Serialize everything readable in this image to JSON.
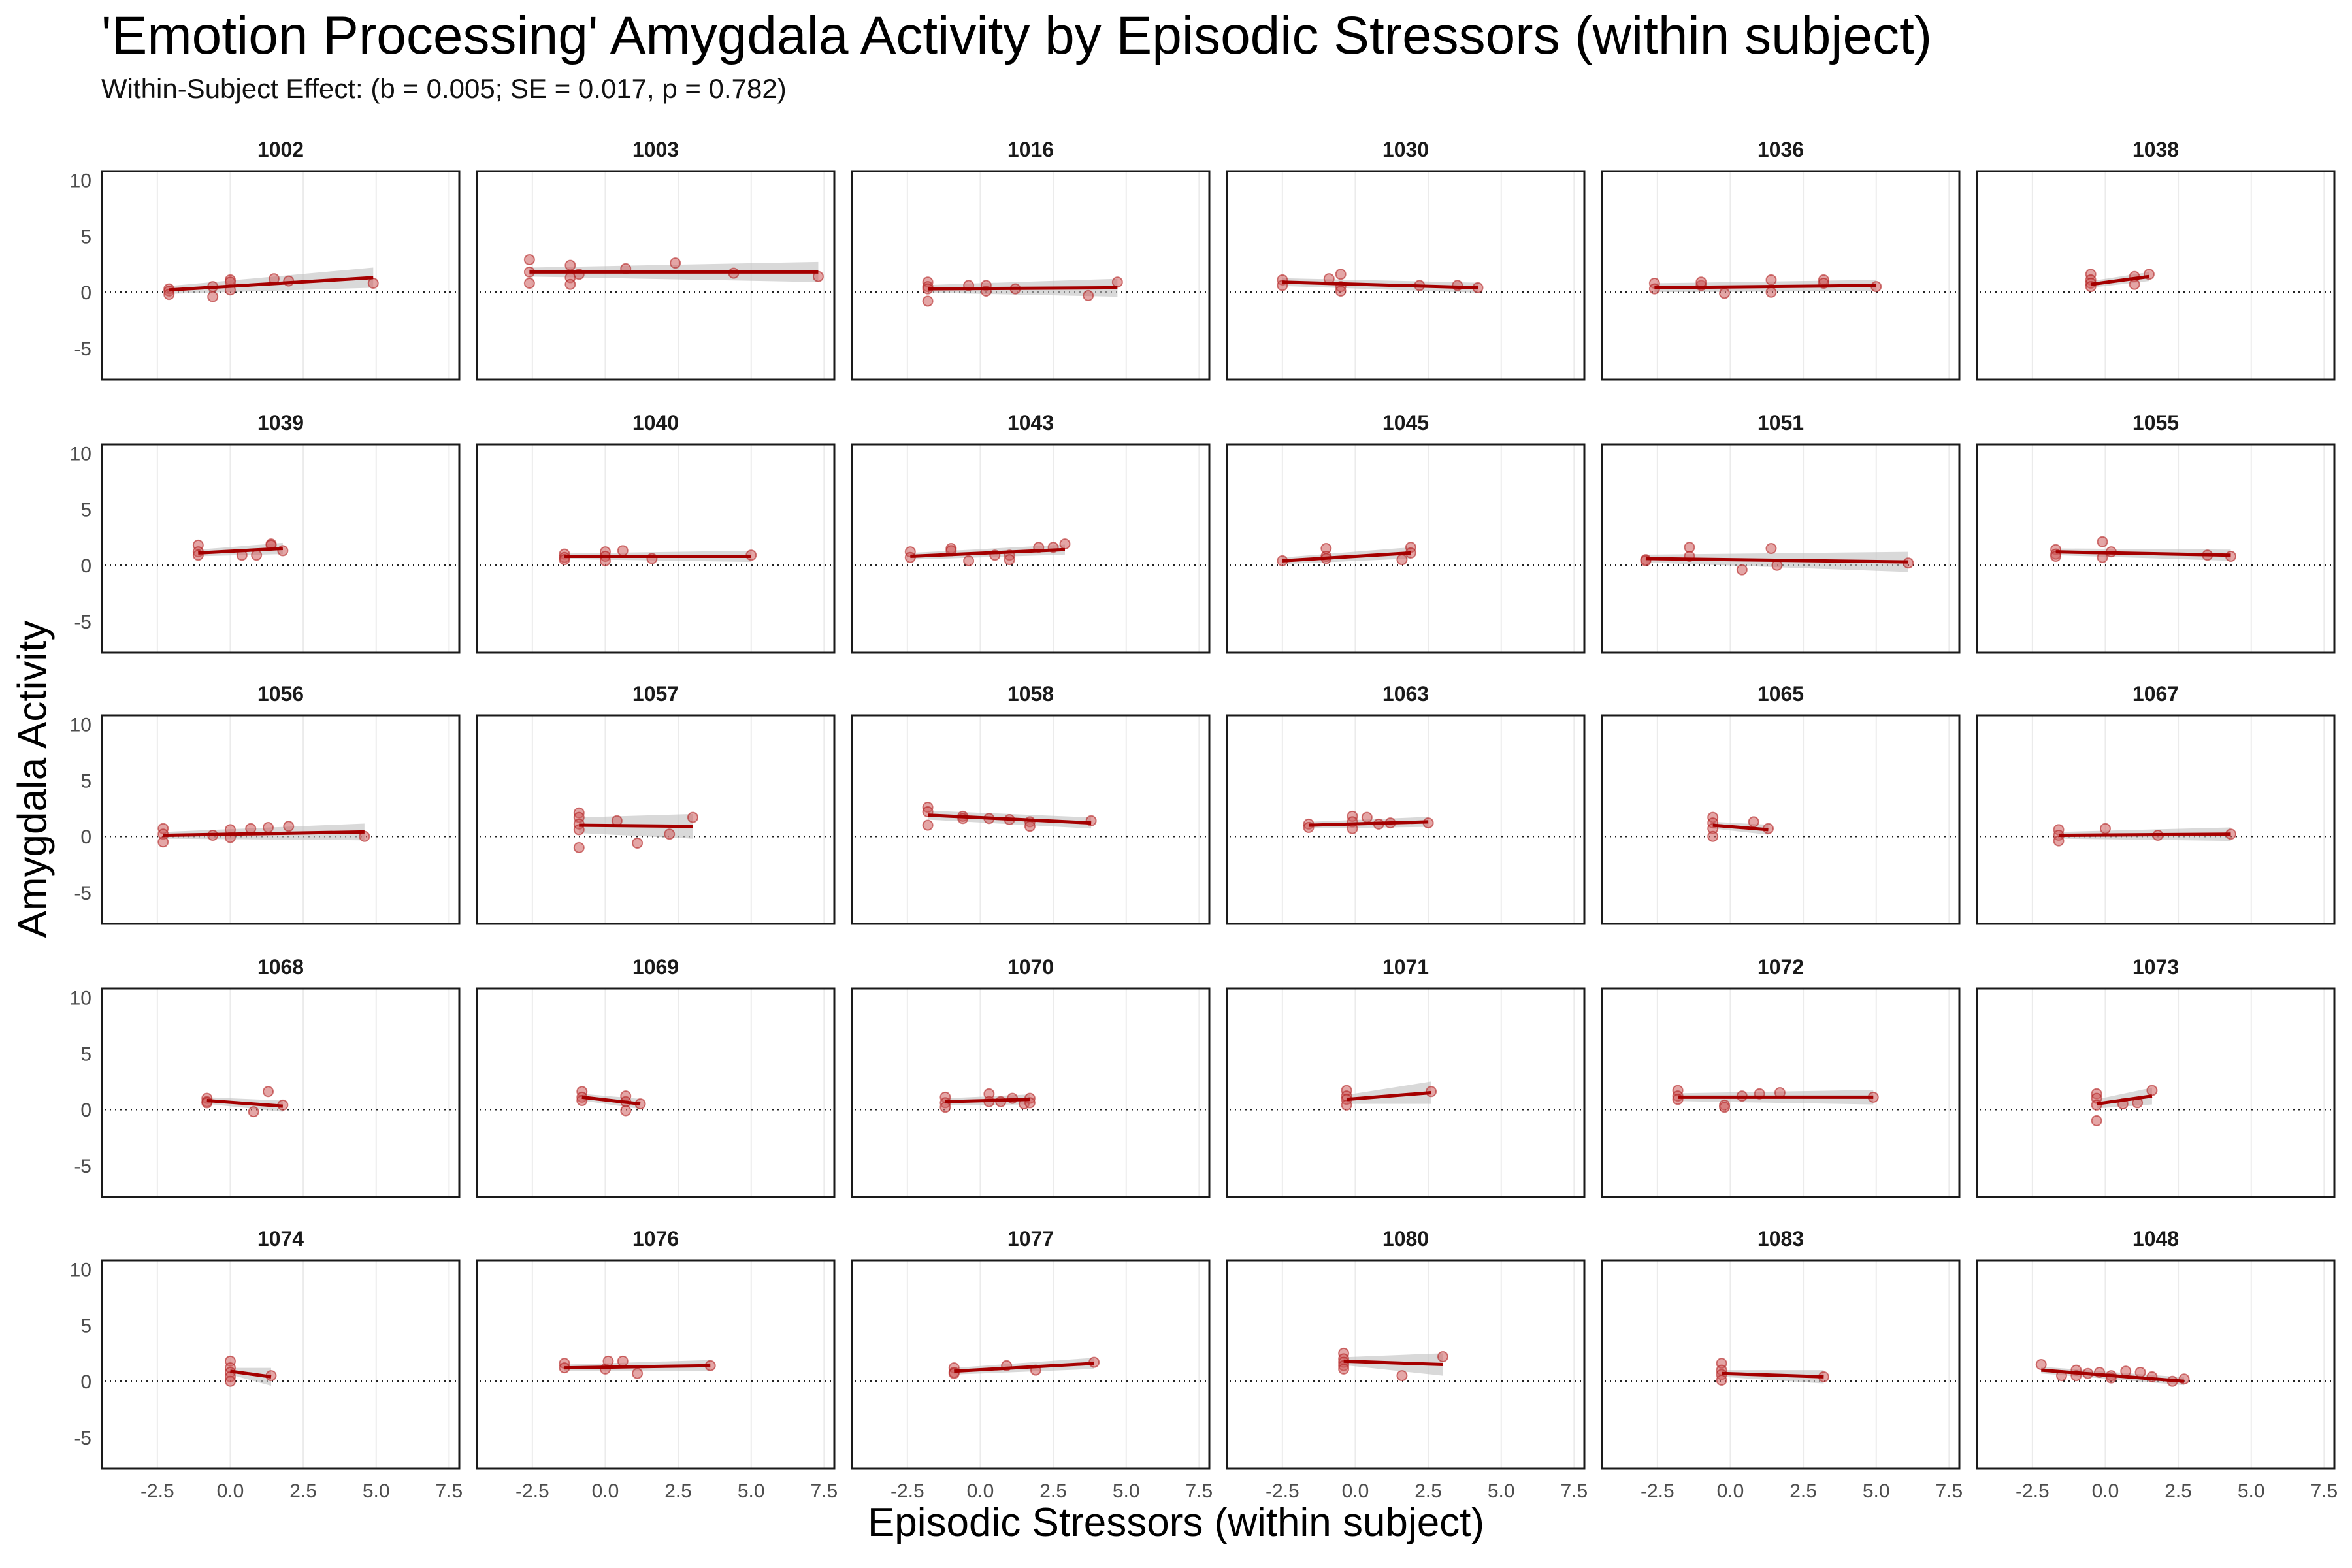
{
  "chart_data": {
    "type": "scatter",
    "title": "'Emotion Processing' Amygdala Activity by Episodic Stressors (within subject)",
    "subtitle": "Within-Subject Effect: (b = 0.005; SE = 0.017, p = 0.782)",
    "xlabel": "Episodic Stressors (within subject)",
    "ylabel": "Amygdala Activity",
    "xlim": [
      -4.4,
      7.85
    ],
    "ylim": [
      -7.8,
      10.8
    ],
    "x_ticks": [
      -2.5,
      0.0,
      2.5,
      5.0,
      7.5
    ],
    "x_tick_labels": [
      "-2.5",
      "0.0",
      "2.5",
      "5.0",
      "7.5"
    ],
    "y_ticks": [
      10,
      5,
      0,
      -5
    ],
    "y_tick_labels": [
      "10",
      "5",
      "0",
      "-5"
    ],
    "reference_line_y": 0,
    "grid": "vertical-major",
    "point_color": "#cd5c5c",
    "line_color": "#a50000",
    "ribbon_color": "#bfbfbf",
    "facets": [
      {
        "id": "1002",
        "x": [
          -2.1,
          -2.1,
          -2.1,
          -0.6,
          -0.6,
          0.0,
          0.0,
          0.0,
          1.5,
          2.0,
          4.9
        ],
        "y": [
          0.3,
          0.1,
          -0.2,
          0.5,
          -0.4,
          1.1,
          0.9,
          0.2,
          1.2,
          1.0,
          0.8
        ],
        "fit": [
          [
            -2.1,
            0.2
          ],
          [
            4.9,
            1.3
          ]
        ],
        "se": [
          0.35,
          0.9
        ]
      },
      {
        "id": "1003",
        "x": [
          -2.6,
          -2.6,
          -2.6,
          -1.2,
          -1.2,
          -1.2,
          -0.9,
          0.7,
          2.4,
          4.4,
          7.3
        ],
        "y": [
          2.9,
          1.8,
          0.8,
          2.4,
          1.3,
          0.7,
          1.6,
          2.1,
          2.6,
          1.7,
          1.4
        ],
        "fit": [
          [
            -2.6,
            1.8
          ],
          [
            7.3,
            1.8
          ]
        ],
        "se": [
          0.4,
          0.9
        ]
      },
      {
        "id": "1016",
        "x": [
          -1.8,
          -1.8,
          -1.8,
          -1.8,
          -0.4,
          0.2,
          0.2,
          1.2,
          3.7,
          4.7
        ],
        "y": [
          0.9,
          0.5,
          0.3,
          -0.8,
          0.6,
          0.6,
          0.1,
          0.3,
          -0.3,
          0.9
        ],
        "fit": [
          [
            -1.8,
            0.3
          ],
          [
            4.7,
            0.4
          ]
        ],
        "se": [
          0.35,
          0.8
        ]
      },
      {
        "id": "1030",
        "x": [
          -2.5,
          -2.5,
          -0.9,
          -0.5,
          -0.5,
          -0.5,
          2.2,
          3.5,
          4.2
        ],
        "y": [
          1.1,
          0.6,
          1.2,
          1.6,
          0.5,
          0.1,
          0.6,
          0.6,
          0.4
        ],
        "fit": [
          [
            -2.5,
            0.9
          ],
          [
            4.2,
            0.4
          ]
        ],
        "se": [
          0.35,
          0.45
        ]
      },
      {
        "id": "1036",
        "x": [
          -2.6,
          -2.6,
          -1.0,
          -1.0,
          -0.2,
          1.4,
          1.4,
          3.2,
          3.2,
          5.0
        ],
        "y": [
          0.8,
          0.3,
          0.6,
          0.9,
          -0.1,
          1.1,
          0.0,
          1.1,
          0.8,
          0.5
        ],
        "fit": [
          [
            -2.6,
            0.4
          ],
          [
            5.0,
            0.6
          ]
        ],
        "se": [
          0.4,
          0.5
        ]
      },
      {
        "id": "1038",
        "x": [
          -0.5,
          -0.5,
          -0.5,
          -0.5,
          1.0,
          1.0,
          1.5
        ],
        "y": [
          1.6,
          1.1,
          0.8,
          0.5,
          1.4,
          0.7,
          1.6
        ],
        "fit": [
          [
            -0.5,
            0.7
          ],
          [
            1.5,
            1.4
          ]
        ],
        "se": [
          0.3,
          0.4
        ]
      },
      {
        "id": "1039",
        "x": [
          -1.1,
          -1.1,
          -1.1,
          0.4,
          0.9,
          1.4,
          1.4,
          1.8
        ],
        "y": [
          1.8,
          1.2,
          0.9,
          0.9,
          0.9,
          1.9,
          1.8,
          1.3
        ],
        "fit": [
          [
            -1.1,
            1.1
          ],
          [
            1.8,
            1.5
          ]
        ],
        "se": [
          0.3,
          0.5
        ]
      },
      {
        "id": "1040",
        "x": [
          -1.4,
          -1.4,
          -1.4,
          0.0,
          0.0,
          0.0,
          0.6,
          1.6,
          5.0
        ],
        "y": [
          1.0,
          0.7,
          0.5,
          1.2,
          0.8,
          0.4,
          1.3,
          0.6,
          0.9
        ],
        "fit": [
          [
            -1.4,
            0.8
          ],
          [
            5.0,
            0.8
          ]
        ],
        "se": [
          0.25,
          0.5
        ]
      },
      {
        "id": "1043",
        "x": [
          -2.4,
          -2.4,
          -1.0,
          -1.0,
          -0.4,
          0.5,
          1.0,
          1.0,
          2.0,
          2.5,
          2.9
        ],
        "y": [
          1.2,
          0.7,
          1.5,
          1.3,
          0.4,
          0.9,
          0.9,
          0.5,
          1.6,
          1.6,
          1.9
        ],
        "fit": [
          [
            -2.4,
            0.8
          ],
          [
            2.9,
            1.4
          ]
        ],
        "se": [
          0.3,
          0.45
        ]
      },
      {
        "id": "1045",
        "x": [
          -2.5,
          -1.0,
          -1.0,
          -1.0,
          1.6,
          1.9,
          1.9
        ],
        "y": [
          0.4,
          1.5,
          0.8,
          0.6,
          0.5,
          1.6,
          1.1
        ],
        "fit": [
          [
            -2.5,
            0.4
          ],
          [
            1.9,
            1.1
          ]
        ],
        "se": [
          0.3,
          0.5
        ]
      },
      {
        "id": "1051",
        "x": [
          -2.9,
          -2.9,
          -1.4,
          -1.4,
          0.4,
          1.4,
          1.6,
          6.1
        ],
        "y": [
          0.5,
          0.4,
          1.6,
          0.8,
          -0.4,
          1.5,
          0.0,
          0.2
        ],
        "fit": [
          [
            -2.9,
            0.6
          ],
          [
            6.1,
            0.3
          ]
        ],
        "se": [
          0.35,
          0.9
        ]
      },
      {
        "id": "1055",
        "x": [
          -1.7,
          -1.7,
          -1.7,
          -0.1,
          -0.1,
          0.2,
          3.5,
          4.3
        ],
        "y": [
          1.4,
          1.0,
          0.8,
          2.1,
          0.7,
          1.2,
          0.9,
          0.8
        ],
        "fit": [
          [
            -1.7,
            1.2
          ],
          [
            4.3,
            0.9
          ]
        ],
        "se": [
          0.3,
          0.5
        ]
      },
      {
        "id": "1056",
        "x": [
          -2.3,
          -2.3,
          -2.3,
          -0.6,
          0.0,
          0.0,
          0.7,
          1.3,
          2.0,
          4.6
        ],
        "y": [
          0.7,
          0.2,
          -0.5,
          0.1,
          0.6,
          -0.1,
          0.7,
          0.8,
          0.9,
          0.0
        ],
        "fit": [
          [
            -2.3,
            0.1
          ],
          [
            4.6,
            0.4
          ]
        ],
        "se": [
          0.3,
          0.75
        ]
      },
      {
        "id": "1057",
        "x": [
          -0.9,
          -0.9,
          -0.9,
          -0.9,
          -0.9,
          0.4,
          1.1,
          2.2,
          3.0
        ],
        "y": [
          2.1,
          1.7,
          1.1,
          0.6,
          -1.0,
          1.4,
          -0.6,
          0.2,
          1.7
        ],
        "fit": [
          [
            -0.9,
            1.0
          ],
          [
            3.0,
            0.9
          ]
        ],
        "se": [
          0.7,
          1.1
        ]
      },
      {
        "id": "1058",
        "x": [
          -1.8,
          -1.8,
          -1.8,
          -0.6,
          -0.6,
          0.3,
          1.0,
          1.7,
          1.7,
          3.8
        ],
        "y": [
          2.6,
          2.2,
          1.0,
          1.8,
          1.6,
          1.6,
          1.5,
          1.3,
          0.9,
          1.4
        ],
        "fit": [
          [
            -1.8,
            1.9
          ],
          [
            3.8,
            1.2
          ]
        ],
        "se": [
          0.4,
          0.5
        ]
      },
      {
        "id": "1063",
        "x": [
          -1.6,
          -1.6,
          -0.1,
          -0.1,
          -0.1,
          0.4,
          0.8,
          1.2,
          2.5
        ],
        "y": [
          1.1,
          0.8,
          1.8,
          1.3,
          0.7,
          1.7,
          1.1,
          1.2,
          1.2
        ],
        "fit": [
          [
            -1.6,
            1.0
          ],
          [
            2.5,
            1.3
          ]
        ],
        "se": [
          0.3,
          0.45
        ]
      },
      {
        "id": "1065",
        "x": [
          -0.6,
          -0.6,
          -0.6,
          -0.6,
          0.8,
          1.3
        ],
        "y": [
          1.7,
          1.2,
          0.7,
          0.0,
          1.3,
          0.7
        ],
        "fit": [
          [
            -0.6,
            1.0
          ],
          [
            1.3,
            0.6
          ]
        ],
        "se": [
          0.3,
          0.45
        ]
      },
      {
        "id": "1067",
        "x": [
          -1.6,
          -1.6,
          -1.6,
          0.0,
          1.8,
          4.3
        ],
        "y": [
          0.6,
          0.1,
          -0.4,
          0.7,
          0.1,
          0.2
        ],
        "fit": [
          [
            -1.6,
            0.1
          ],
          [
            4.3,
            0.2
          ]
        ],
        "se": [
          0.3,
          0.6
        ]
      },
      {
        "id": "1068",
        "x": [
          -0.8,
          -0.8,
          -0.8,
          0.8,
          1.3,
          1.8
        ],
        "y": [
          1.0,
          0.7,
          0.6,
          -0.2,
          1.6,
          0.4
        ],
        "fit": [
          [
            -0.8,
            0.8
          ],
          [
            1.8,
            0.3
          ]
        ],
        "se": [
          0.3,
          0.5
        ]
      },
      {
        "id": "1069",
        "x": [
          -0.8,
          -0.8,
          -0.8,
          0.7,
          0.7,
          0.7,
          1.2
        ],
        "y": [
          1.6,
          1.1,
          0.8,
          1.2,
          0.7,
          -0.1,
          0.5
        ],
        "fit": [
          [
            -0.8,
            1.1
          ],
          [
            1.2,
            0.5
          ]
        ],
        "se": [
          0.3,
          0.45
        ]
      },
      {
        "id": "1070",
        "x": [
          -1.2,
          -1.2,
          -1.2,
          0.3,
          0.3,
          0.7,
          1.1,
          1.5,
          1.7,
          1.7
        ],
        "y": [
          1.1,
          0.6,
          0.2,
          1.4,
          0.7,
          0.7,
          1.0,
          0.5,
          1.0,
          0.6
        ],
        "fit": [
          [
            -1.2,
            0.7
          ],
          [
            1.7,
            0.9
          ]
        ],
        "se": [
          0.3,
          0.45
        ]
      },
      {
        "id": "1071",
        "x": [
          -0.3,
          -0.3,
          -0.3,
          -0.3,
          2.6
        ],
        "y": [
          1.7,
          1.2,
          0.9,
          0.4,
          1.6
        ],
        "fit": [
          [
            -0.3,
            0.9
          ],
          [
            2.6,
            1.5
          ]
        ],
        "se": [
          0.4,
          1.0
        ]
      },
      {
        "id": "1072",
        "x": [
          -1.8,
          -1.8,
          -1.8,
          -0.2,
          -0.2,
          0.4,
          1.0,
          1.7,
          4.9
        ],
        "y": [
          1.7,
          1.2,
          0.9,
          0.4,
          0.2,
          1.2,
          1.4,
          1.5,
          1.1
        ],
        "fit": [
          [
            -1.8,
            1.1
          ],
          [
            4.9,
            1.1
          ]
        ],
        "se": [
          0.35,
          0.65
        ]
      },
      {
        "id": "1073",
        "x": [
          -0.3,
          -0.3,
          -0.3,
          -0.3,
          0.6,
          1.1,
          1.6
        ],
        "y": [
          1.4,
          1.0,
          0.4,
          -1.0,
          0.5,
          0.6,
          1.7
        ],
        "fit": [
          [
            -0.3,
            0.5
          ],
          [
            1.6,
            1.2
          ]
        ],
        "se": [
          0.4,
          0.75
        ]
      },
      {
        "id": "1074",
        "x": [
          0.0,
          0.0,
          0.0,
          0.0,
          0.0,
          1.4
        ],
        "y": [
          1.8,
          1.2,
          0.8,
          0.4,
          0.0,
          0.5
        ],
        "fit": [
          [
            0.0,
            0.9
          ],
          [
            1.4,
            0.4
          ]
        ],
        "se": [
          0.3,
          0.8
        ]
      },
      {
        "id": "1076",
        "x": [
          -1.4,
          -1.4,
          0.0,
          0.1,
          0.6,
          1.1,
          3.6
        ],
        "y": [
          1.6,
          1.2,
          1.1,
          1.8,
          1.8,
          0.7,
          1.4
        ],
        "fit": [
          [
            -1.4,
            1.2
          ],
          [
            3.6,
            1.4
          ]
        ],
        "se": [
          0.3,
          0.5
        ]
      },
      {
        "id": "1077",
        "x": [
          -0.9,
          -0.9,
          -0.9,
          0.9,
          1.9,
          3.9
        ],
        "y": [
          1.2,
          0.8,
          0.7,
          1.4,
          1.0,
          1.7
        ],
        "fit": [
          [
            -0.9,
            0.9
          ],
          [
            3.9,
            1.6
          ]
        ],
        "se": [
          0.3,
          0.5
        ]
      },
      {
        "id": "1080",
        "x": [
          -0.4,
          -0.4,
          -0.4,
          -0.4,
          -0.4,
          1.6,
          3.0
        ],
        "y": [
          2.5,
          2.0,
          1.7,
          1.4,
          1.1,
          0.5,
          2.2
        ],
        "fit": [
          [
            -0.4,
            1.8
          ],
          [
            3.0,
            1.5
          ]
        ],
        "se": [
          0.35,
          1.0
        ]
      },
      {
        "id": "1083",
        "x": [
          -0.3,
          -0.3,
          -0.3,
          -0.3,
          3.2
        ],
        "y": [
          1.6,
          1.0,
          0.6,
          0.1,
          0.4
        ],
        "fit": [
          [
            -0.3,
            0.7
          ],
          [
            3.2,
            0.4
          ]
        ],
        "se": [
          0.3,
          0.6
        ]
      },
      {
        "id": "1048",
        "x": [
          -2.2,
          -1.5,
          -1.0,
          -1.0,
          -0.6,
          -0.2,
          0.2,
          0.2,
          0.7,
          1.2,
          1.6,
          2.3,
          2.7
        ],
        "y": [
          1.5,
          0.5,
          1.0,
          0.5,
          0.7,
          0.8,
          0.5,
          0.3,
          0.9,
          0.8,
          0.4,
          0.0,
          0.2
        ],
        "fit": [
          [
            -2.2,
            1.0
          ],
          [
            2.7,
            0.0
          ]
        ],
        "se": [
          0.3,
          0.35
        ]
      }
    ]
  }
}
